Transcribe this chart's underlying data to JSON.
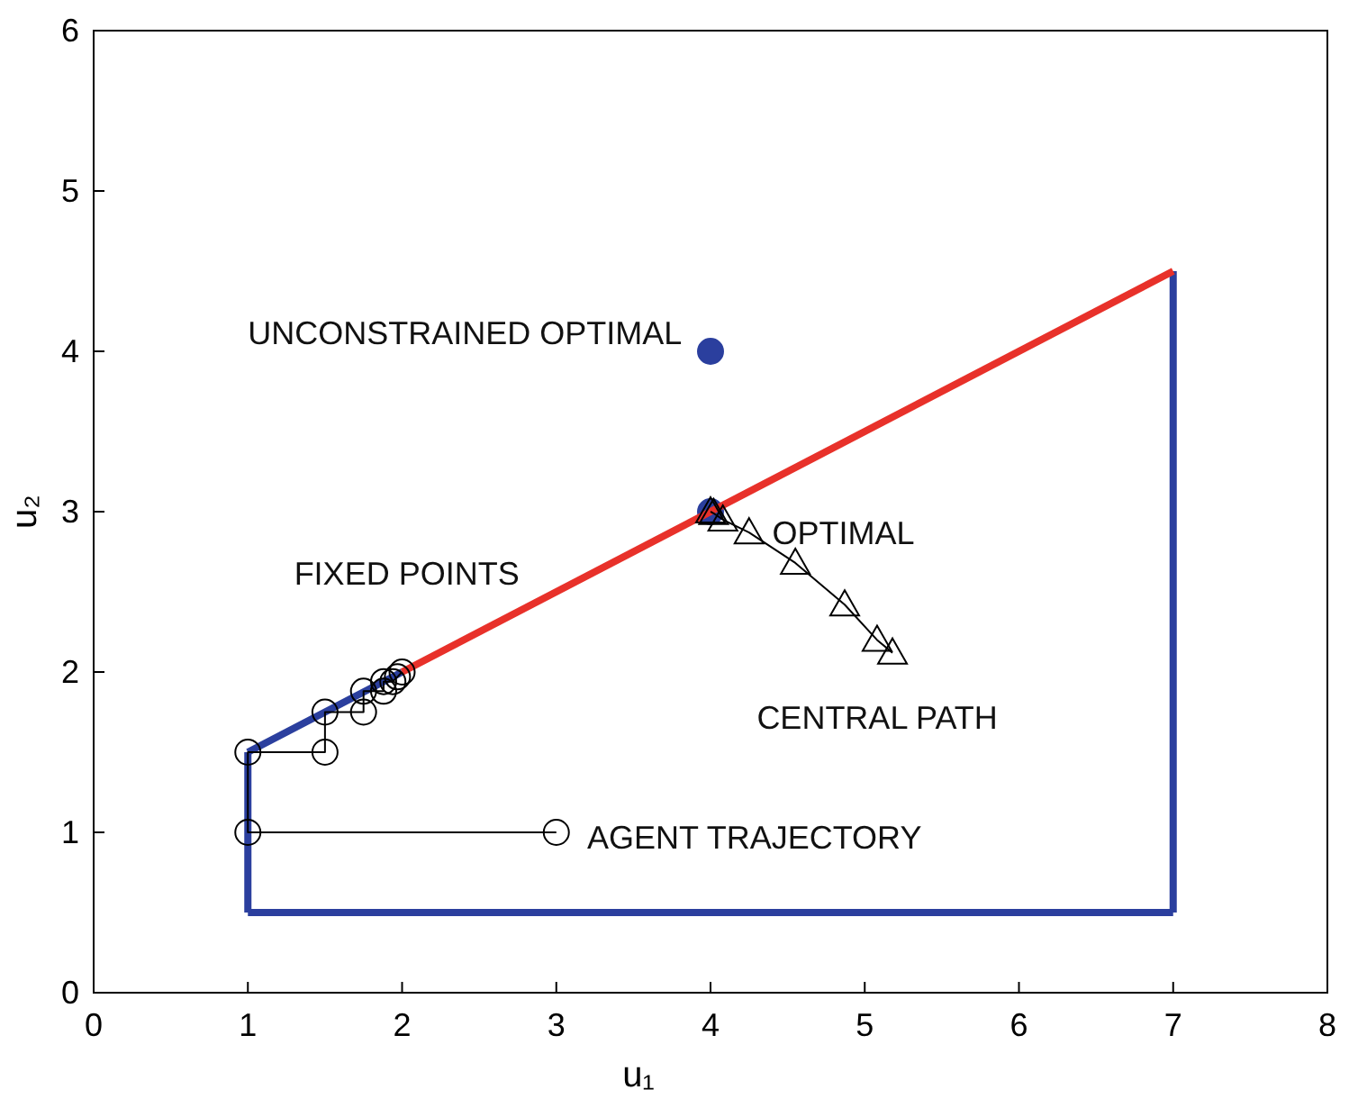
{
  "chart_data": {
    "type": "line",
    "xlabel": "u₁",
    "ylabel": "u₂",
    "xlim": [
      0,
      8
    ],
    "ylim": [
      0,
      6
    ],
    "xticks": [
      0,
      1,
      2,
      3,
      4,
      5,
      6,
      7,
      8
    ],
    "yticks": [
      0,
      1,
      2,
      3,
      4,
      5,
      6
    ],
    "grid": false,
    "series": [
      {
        "type": "scatter",
        "color": "#2b3f9e",
        "marker": "circle",
        "x": [
          4,
          4
        ],
        "values": [
          4,
          3
        ]
      },
      {
        "color": "#2b3f9e",
        "marker": "none",
        "x": [
          1,
          7
        ],
        "values": [
          0.5,
          0.5
        ]
      },
      {
        "color": "#2b3f9e",
        "marker": "none",
        "x": [
          1,
          1
        ],
        "values": [
          0.5,
          1.5
        ]
      },
      {
        "color": "#2b3f9e",
        "marker": "none",
        "x": [
          1,
          2
        ],
        "values": [
          1.5,
          2
        ]
      },
      {
        "color": "#2b3f9e",
        "marker": "none",
        "x": [
          7,
          7
        ],
        "values": [
          0.5,
          4.5
        ]
      },
      {
        "color": "#e8312a",
        "marker": "none",
        "x": [
          2,
          7
        ],
        "values": [
          2,
          4.5
        ]
      },
      {
        "color": "#000000",
        "marker": "circle",
        "x": [
          3,
          1,
          1,
          1.5,
          1.5,
          1.75,
          1.75,
          1.88,
          1.88,
          1.94,
          1.97,
          2
        ],
        "values": [
          1,
          1,
          1.5,
          1.5,
          1.75,
          1.75,
          1.88,
          1.88,
          1.94,
          1.94,
          1.97,
          2
        ]
      },
      {
        "color": "#000000",
        "marker": "triangle",
        "x": [
          5.18,
          5.08,
          4.87,
          4.55,
          4.25,
          4.08,
          4.02,
          4
        ],
        "values": [
          2.12,
          2.2,
          2.42,
          2.68,
          2.87,
          2.95,
          2.99,
          3
        ]
      }
    ],
    "annotations": [
      "UNCONSTRAINED OPTIMAL",
      "FIXED POINTS",
      "OPTIMAL",
      "CENTRAL PATH",
      "AGENT TRAJECTORY"
    ]
  }
}
